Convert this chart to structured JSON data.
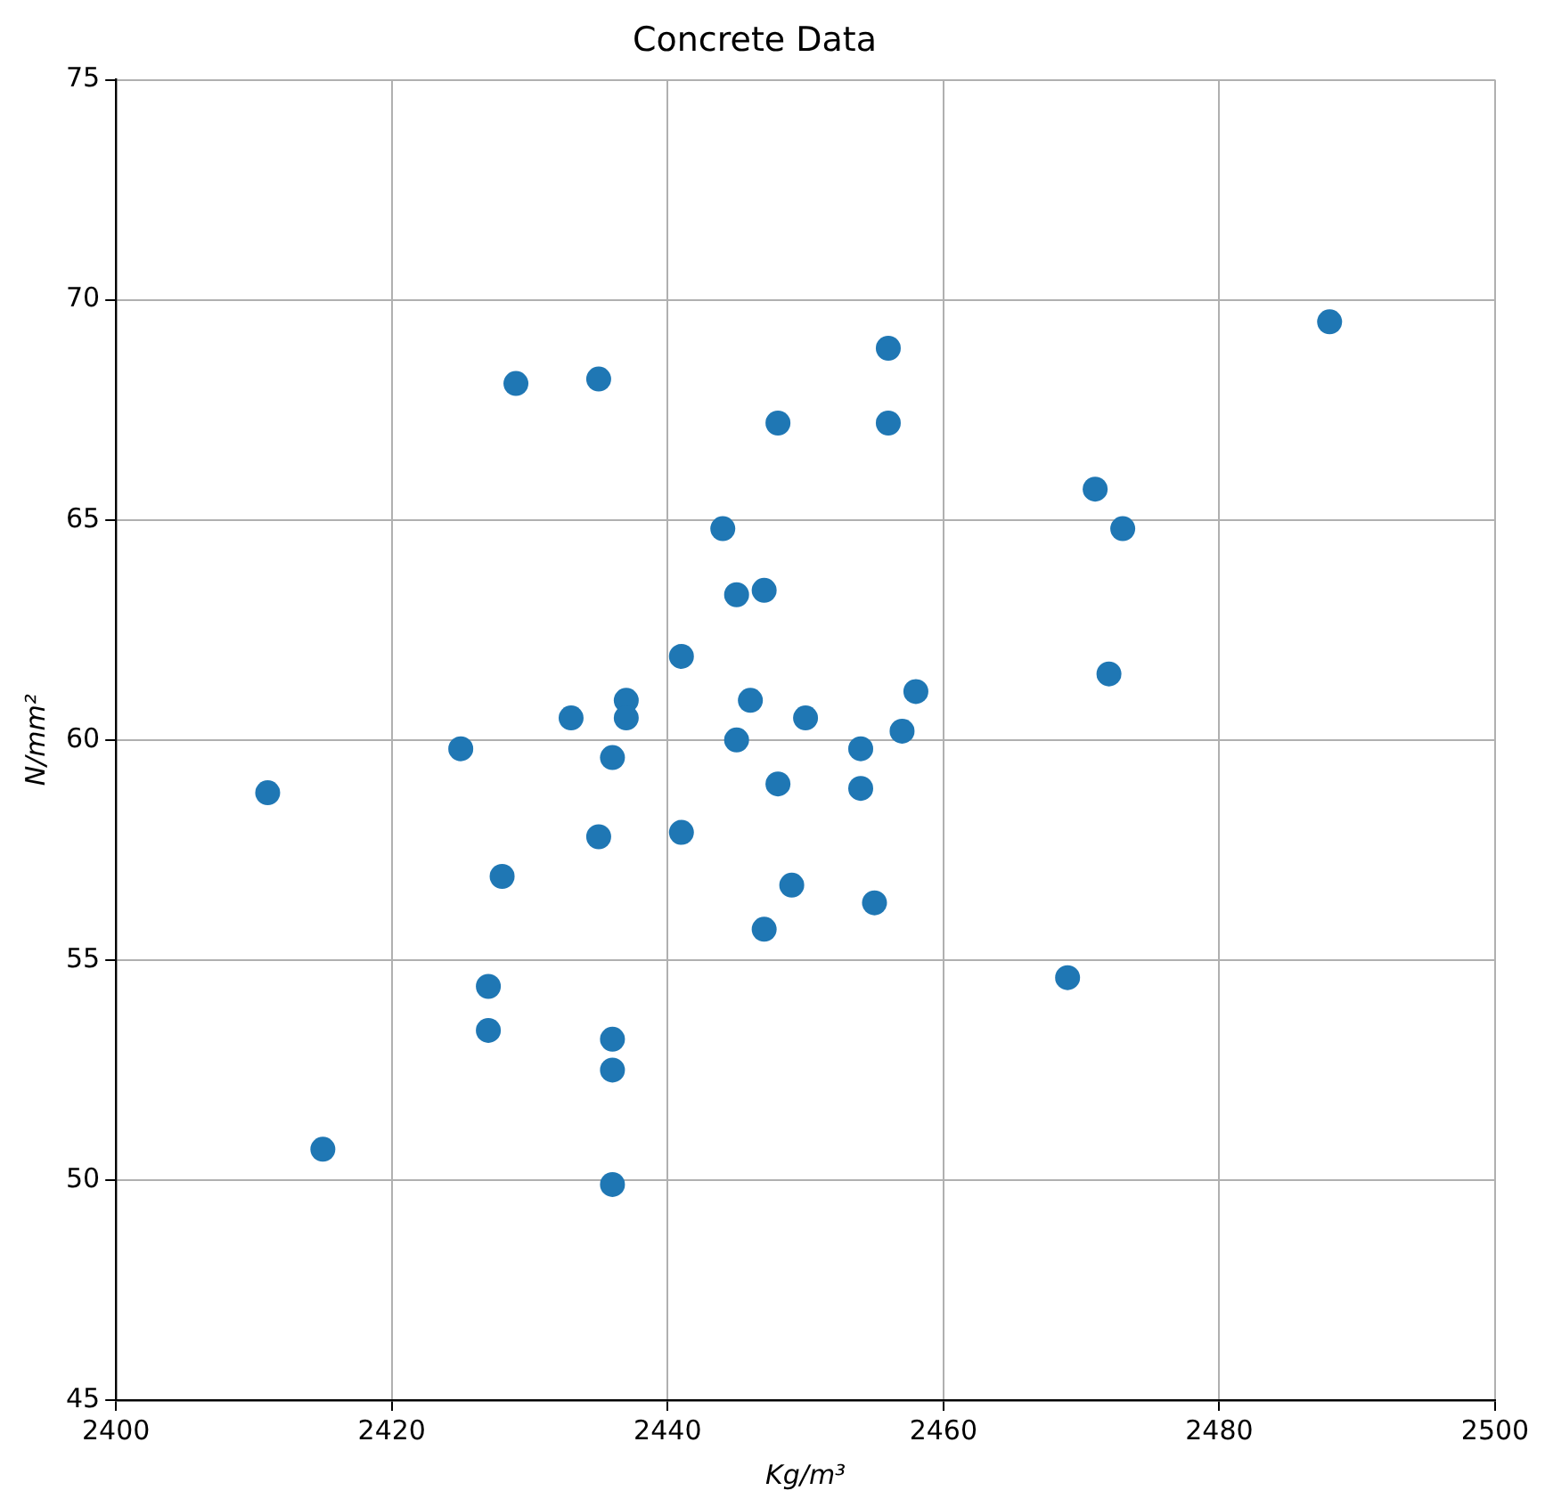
{
  "chart_data": {
    "type": "scatter",
    "title": "Concrete Data",
    "xlabel": "Kg/m³",
    "ylabel": "N/mm²",
    "xlim": [
      2400,
      2500
    ],
    "xticks": [
      2400,
      2420,
      2440,
      2460,
      2480,
      2500
    ],
    "ylim": [
      45,
      75
    ],
    "yticks": [
      45,
      50,
      55,
      60,
      65,
      70,
      75
    ],
    "grid": true,
    "marker": "circle",
    "series": [
      {
        "color": "#1f77b4",
        "x": [
          2411,
          2415,
          2425,
          2427,
          2427,
          2428,
          2429,
          2433,
          2435,
          2435,
          2436,
          2436,
          2436,
          2436,
          2437,
          2437,
          2441,
          2441,
          2444,
          2445,
          2445,
          2446,
          2447,
          2447,
          2448,
          2448,
          2449,
          2450,
          2454,
          2454,
          2455,
          2456,
          2456,
          2457,
          2458,
          2469,
          2471,
          2472,
          2473,
          2488
        ],
        "values": [
          58.8,
          50.7,
          59.8,
          54.4,
          53.4,
          56.9,
          68.1,
          60.5,
          68.2,
          57.8,
          59.6,
          53.2,
          52.5,
          49.9,
          60.9,
          60.5,
          61.9,
          57.9,
          64.8,
          63.3,
          60.0,
          60.9,
          63.4,
          55.7,
          67.2,
          59.0,
          56.7,
          60.5,
          59.8,
          58.9,
          56.3,
          68.9,
          67.2,
          60.2,
          61.1,
          54.6,
          65.7,
          61.5,
          64.8,
          69.5
        ]
      }
    ]
  }
}
